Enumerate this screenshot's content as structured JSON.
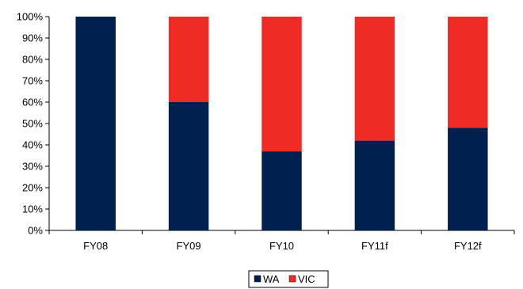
{
  "chart_data": {
    "type": "bar",
    "stacked": true,
    "percent_stacked": true,
    "categories": [
      "FY08",
      "FY09",
      "FY10",
      "FY11f",
      "FY12f"
    ],
    "series": [
      {
        "name": "WA",
        "values": [
          100,
          60,
          37,
          42,
          48
        ],
        "color": "#002050"
      },
      {
        "name": "VIC",
        "values": [
          0,
          40,
          63,
          58,
          52
        ],
        "color": "#ee2b24"
      }
    ],
    "y_ticks": [
      "0%",
      "10%",
      "20%",
      "30%",
      "40%",
      "50%",
      "60%",
      "70%",
      "80%",
      "90%",
      "100%"
    ],
    "ylim": [
      0,
      100
    ],
    "grid": false,
    "legend_position": "bottom"
  }
}
